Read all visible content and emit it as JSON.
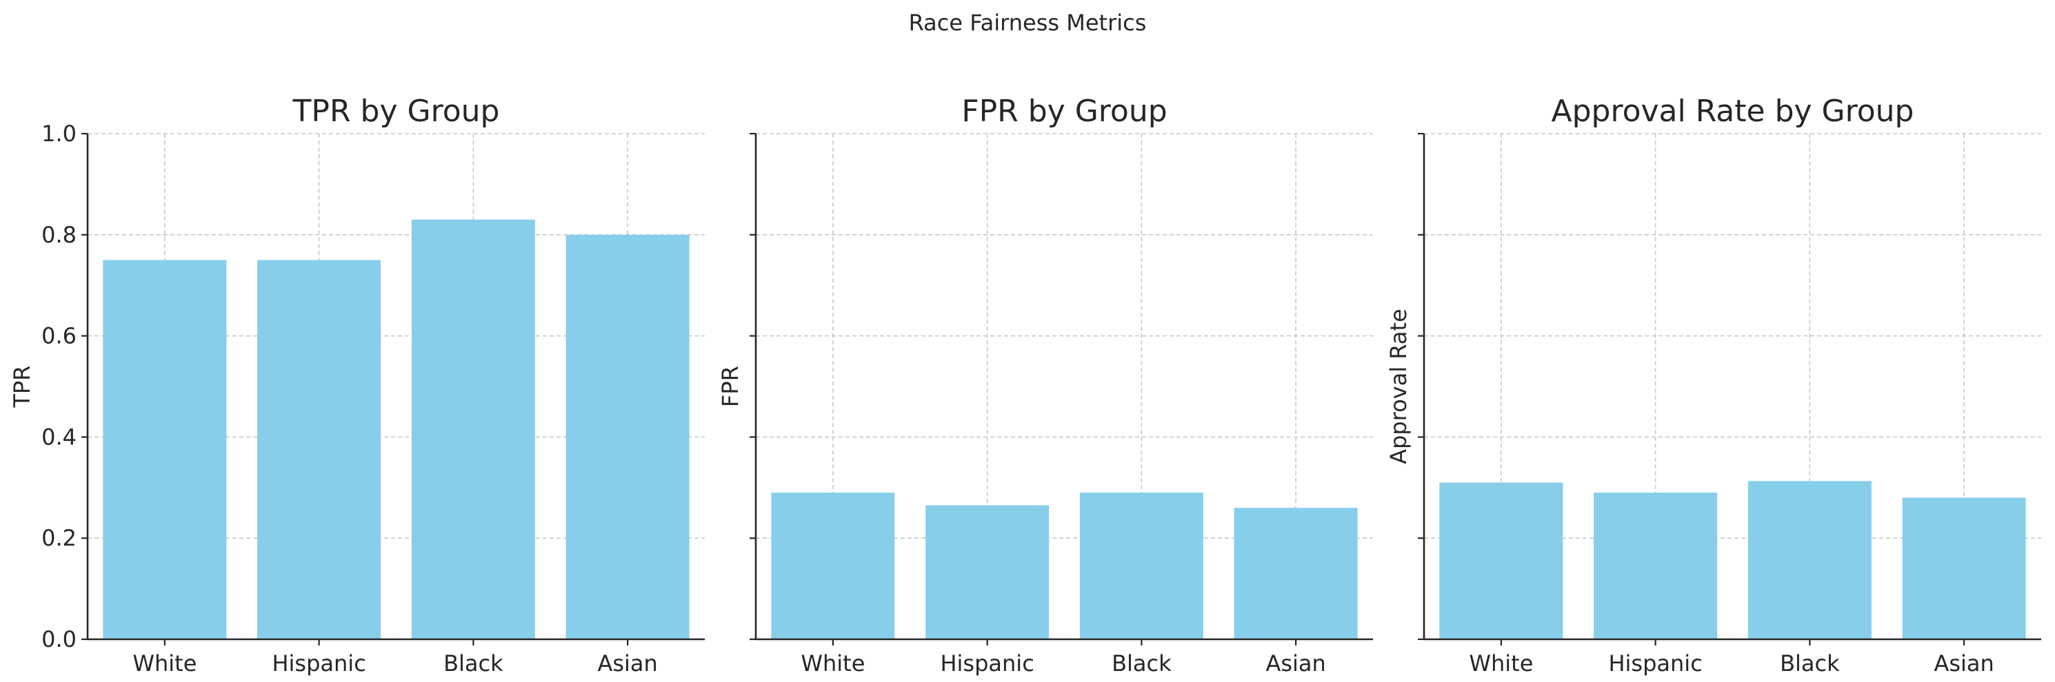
{
  "figure_title": "Race Fairness Metrics",
  "colors": {
    "bar": "#87ceeb",
    "grid": "#c8c8c8",
    "axis": "#262626"
  },
  "chart_data": [
    {
      "type": "bar",
      "title": "TPR by Group",
      "xlabel": "",
      "ylabel": "TPR",
      "categories": [
        "White",
        "Hispanic",
        "Black",
        "Asian"
      ],
      "values": [
        0.75,
        0.75,
        0.83,
        0.8
      ],
      "ylim": [
        0,
        1.0
      ],
      "yticks": [
        0.0,
        0.2,
        0.4,
        0.6,
        0.8,
        1.0
      ],
      "ytick_labels": [
        "0.0",
        "0.2",
        "0.4",
        "0.6",
        "0.8",
        "1.0"
      ],
      "show_ytick_labels": true,
      "grid": true
    },
    {
      "type": "bar",
      "title": "FPR by Group",
      "xlabel": "",
      "ylabel": "FPR",
      "categories": [
        "White",
        "Hispanic",
        "Black",
        "Asian"
      ],
      "values": [
        0.29,
        0.265,
        0.29,
        0.26
      ],
      "ylim": [
        0,
        1.0
      ],
      "yticks": [
        0.0,
        0.2,
        0.4,
        0.6,
        0.8,
        1.0
      ],
      "show_ytick_labels": false,
      "grid": true
    },
    {
      "type": "bar",
      "title": "Approval Rate by Group",
      "xlabel": "",
      "ylabel": "Approval Rate",
      "categories": [
        "White",
        "Hispanic",
        "Black",
        "Asian"
      ],
      "values": [
        0.31,
        0.29,
        0.313,
        0.28
      ],
      "ylim": [
        0,
        1.0
      ],
      "yticks": [
        0.0,
        0.2,
        0.4,
        0.6,
        0.8,
        1.0
      ],
      "show_ytick_labels": false,
      "grid": true
    }
  ]
}
